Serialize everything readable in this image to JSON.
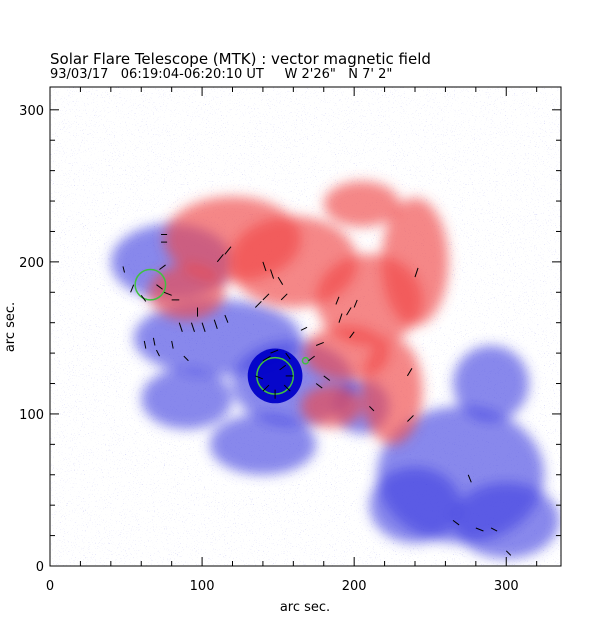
{
  "header": {
    "title": "Solar Flare Telescope (MTK) : vector magnetic field",
    "subtitle": "93/03/17   06:19:04-06:20:10 UT     W 2'26\"   N 7' 2\""
  },
  "chart_data": {
    "type": "heatmap",
    "title": "Solar Flare Telescope (MTK) : vector magnetic field",
    "subtitle": "93/03/17   06:19:04-06:20:10 UT     W 2'26\"   N 7' 2\"",
    "xlabel": "arc sec.",
    "ylabel": "arc sec.",
    "xlim": [
      0,
      336
    ],
    "ylim": [
      0,
      315
    ],
    "x_ticks": [
      0,
      100,
      200,
      300
    ],
    "y_ticks": [
      0,
      100,
      200,
      300
    ],
    "colors": {
      "positive_polarity": "#f04848",
      "negative_polarity": "#4040e0",
      "strong_negative": "#0000c8",
      "neutral_line": "#40c040",
      "vectors": "#000000"
    },
    "positive_regions": [
      {
        "x": 120,
        "y": 215,
        "rx": 45,
        "ry": 28
      },
      {
        "x": 160,
        "y": 200,
        "rx": 42,
        "ry": 30
      },
      {
        "x": 210,
        "y": 175,
        "rx": 35,
        "ry": 30
      },
      {
        "x": 240,
        "y": 200,
        "rx": 22,
        "ry": 42
      },
      {
        "x": 225,
        "y": 115,
        "rx": 20,
        "ry": 35
      },
      {
        "x": 195,
        "y": 140,
        "rx": 28,
        "ry": 18
      },
      {
        "x": 90,
        "y": 180,
        "rx": 25,
        "ry": 18
      },
      {
        "x": 205,
        "y": 238,
        "rx": 25,
        "ry": 15
      },
      {
        "x": 185,
        "y": 105,
        "rx": 20,
        "ry": 14
      }
    ],
    "negative_regions": [
      {
        "x": 80,
        "y": 200,
        "rx": 40,
        "ry": 25
      },
      {
        "x": 110,
        "y": 150,
        "rx": 55,
        "ry": 25
      },
      {
        "x": 160,
        "y": 120,
        "rx": 40,
        "ry": 28
      },
      {
        "x": 205,
        "y": 105,
        "rx": 18,
        "ry": 18
      },
      {
        "x": 270,
        "y": 60,
        "rx": 55,
        "ry": 45
      },
      {
        "x": 300,
        "y": 30,
        "rx": 35,
        "ry": 25
      },
      {
        "x": 290,
        "y": 120,
        "rx": 25,
        "ry": 25
      },
      {
        "x": 240,
        "y": 40,
        "rx": 30,
        "ry": 25
      },
      {
        "x": 140,
        "y": 80,
        "rx": 35,
        "ry": 20
      },
      {
        "x": 90,
        "y": 110,
        "rx": 30,
        "ry": 20
      }
    ],
    "sunspot": {
      "x": 148,
      "y": 125,
      "r": 12
    },
    "neutral_line_circles": [
      {
        "x": 148,
        "y": 125,
        "r": 12
      },
      {
        "x": 66,
        "y": 185,
        "r": 10
      },
      {
        "x": 168,
        "y": 135,
        "r": 2
      }
    ],
    "vectors": [
      {
        "x": 70,
        "y": 185,
        "dx": 4,
        "dy": -3
      },
      {
        "x": 75,
        "y": 180,
        "dx": 5,
        "dy": -2
      },
      {
        "x": 80,
        "y": 175,
        "dx": 5,
        "dy": 0
      },
      {
        "x": 60,
        "y": 178,
        "dx": 3,
        "dy": -4
      },
      {
        "x": 55,
        "y": 185,
        "dx": -2,
        "dy": -5
      },
      {
        "x": 72,
        "y": 195,
        "dx": 4,
        "dy": 3
      },
      {
        "x": 73,
        "y": 213,
        "dx": 4,
        "dy": 0
      },
      {
        "x": 73,
        "y": 218,
        "dx": 4,
        "dy": 0
      },
      {
        "x": 48,
        "y": 197,
        "dx": 1,
        "dy": -4
      },
      {
        "x": 85,
        "y": 160,
        "dx": 2,
        "dy": -6
      },
      {
        "x": 93,
        "y": 160,
        "dx": 2,
        "dy": -6
      },
      {
        "x": 100,
        "y": 160,
        "dx": 2,
        "dy": -6
      },
      {
        "x": 108,
        "y": 162,
        "dx": 2,
        "dy": -6
      },
      {
        "x": 115,
        "y": 165,
        "dx": 2,
        "dy": -5
      },
      {
        "x": 97,
        "y": 170,
        "dx": 0,
        "dy": -6
      },
      {
        "x": 80,
        "y": 148,
        "dx": 1,
        "dy": -5
      },
      {
        "x": 68,
        "y": 150,
        "dx": 1,
        "dy": -5
      },
      {
        "x": 62,
        "y": 148,
        "dx": 1,
        "dy": -5
      },
      {
        "x": 70,
        "y": 142,
        "dx": 2,
        "dy": -4
      },
      {
        "x": 88,
        "y": 138,
        "dx": 3,
        "dy": -3
      },
      {
        "x": 110,
        "y": 200,
        "dx": 4,
        "dy": 5
      },
      {
        "x": 115,
        "y": 205,
        "dx": 4,
        "dy": 5
      },
      {
        "x": 140,
        "y": 200,
        "dx": 2,
        "dy": -6
      },
      {
        "x": 145,
        "y": 195,
        "dx": 2,
        "dy": -6
      },
      {
        "x": 150,
        "y": 190,
        "dx": 3,
        "dy": -5
      },
      {
        "x": 140,
        "y": 175,
        "dx": 4,
        "dy": 4
      },
      {
        "x": 135,
        "y": 170,
        "dx": 4,
        "dy": 4
      },
      {
        "x": 152,
        "y": 175,
        "dx": 4,
        "dy": 4
      },
      {
        "x": 140,
        "y": 135,
        "dx": 5,
        "dy": 3
      },
      {
        "x": 145,
        "y": 140,
        "dx": 5,
        "dy": 2
      },
      {
        "x": 155,
        "y": 140,
        "dx": 3,
        "dy": -4
      },
      {
        "x": 135,
        "y": 125,
        "dx": 5,
        "dy": -2
      },
      {
        "x": 140,
        "y": 115,
        "dx": 4,
        "dy": 4
      },
      {
        "x": 148,
        "y": 110,
        "dx": 0,
        "dy": 6
      },
      {
        "x": 158,
        "y": 115,
        "dx": -4,
        "dy": 4
      },
      {
        "x": 160,
        "y": 125,
        "dx": -5,
        "dy": 0
      },
      {
        "x": 155,
        "y": 132,
        "dx": -4,
        "dy": -3
      },
      {
        "x": 170,
        "y": 135,
        "dx": 4,
        "dy": 3
      },
      {
        "x": 175,
        "y": 145,
        "dx": 5,
        "dy": 2
      },
      {
        "x": 165,
        "y": 155,
        "dx": 4,
        "dy": 2
      },
      {
        "x": 190,
        "y": 160,
        "dx": 2,
        "dy": 6
      },
      {
        "x": 195,
        "y": 165,
        "dx": 3,
        "dy": 5
      },
      {
        "x": 200,
        "y": 170,
        "dx": 2,
        "dy": 5
      },
      {
        "x": 188,
        "y": 172,
        "dx": 2,
        "dy": 5
      },
      {
        "x": 197,
        "y": 150,
        "dx": 3,
        "dy": 4
      },
      {
        "x": 235,
        "y": 125,
        "dx": 3,
        "dy": 5
      },
      {
        "x": 240,
        "y": 190,
        "dx": 2,
        "dy": 6
      },
      {
        "x": 235,
        "y": 95,
        "dx": 4,
        "dy": 4
      },
      {
        "x": 210,
        "y": 105,
        "dx": 3,
        "dy": -3
      },
      {
        "x": 180,
        "y": 125,
        "dx": 4,
        "dy": -3
      },
      {
        "x": 175,
        "y": 120,
        "dx": 4,
        "dy": -3
      },
      {
        "x": 275,
        "y": 60,
        "dx": 2,
        "dy": -5
      },
      {
        "x": 265,
        "y": 30,
        "dx": 4,
        "dy": -3
      },
      {
        "x": 280,
        "y": 25,
        "dx": 5,
        "dy": -2
      },
      {
        "x": 290,
        "y": 25,
        "dx": 4,
        "dy": -2
      },
      {
        "x": 300,
        "y": 10,
        "dx": 3,
        "dy": -3
      }
    ]
  }
}
